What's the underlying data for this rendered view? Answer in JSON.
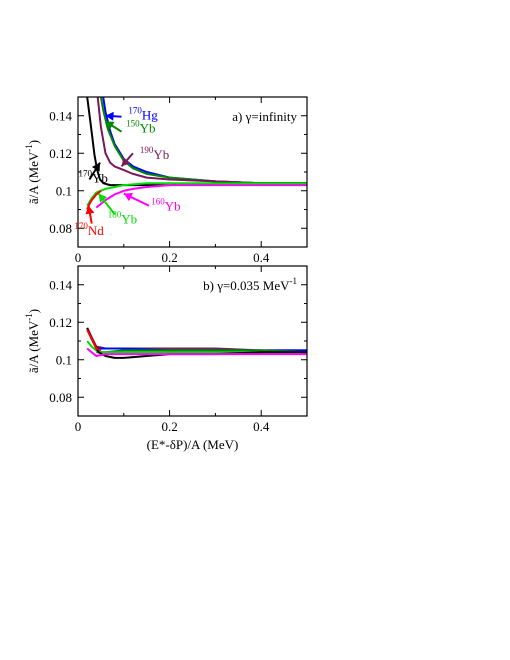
{
  "chart_data": [
    {
      "type": "line",
      "title": "a) γ=infinity",
      "title_parts": {
        "label": "a) ",
        "symbol": "γ",
        "rest": "=infinity",
        "sup": ""
      },
      "xlabel": "",
      "ylabel": "ã/A (MeV⁻¹)",
      "ylabel_parts": {
        "main": "ã/A (MeV",
        "sup": "-1",
        "tail": ")"
      },
      "xlim": [
        0,
        0.5
      ],
      "ylim": [
        0.07,
        0.15
      ],
      "xticks": [
        0,
        0.2,
        0.4
      ],
      "xtick_labels": [
        "0",
        "0.2",
        "0.4"
      ],
      "yticks": [
        0.08,
        0.1,
        0.12,
        0.14
      ],
      "ytick_labels": [
        "0.08",
        "0.1",
        "0.12",
        "0.14"
      ],
      "grid": false,
      "legend": "none",
      "series": [
        {
          "color": "#0000ff",
          "x": [
            0.055,
            0.06,
            0.07,
            0.08,
            0.1,
            0.12,
            0.15,
            0.2,
            0.25,
            0.3,
            0.4,
            0.5
          ],
          "y": [
            0.15,
            0.142,
            0.132,
            0.125,
            0.117,
            0.113,
            0.11,
            0.107,
            0.106,
            0.105,
            0.104,
            0.104
          ]
        },
        {
          "color": "#008800",
          "x": [
            0.05,
            0.055,
            0.065,
            0.08,
            0.1,
            0.12,
            0.15,
            0.2,
            0.25,
            0.3,
            0.4,
            0.5
          ],
          "y": [
            0.15,
            0.143,
            0.133,
            0.124,
            0.116,
            0.112,
            0.109,
            0.107,
            0.106,
            0.105,
            0.104,
            0.104
          ]
        },
        {
          "color": "#7a1a5a",
          "x": [
            0.043,
            0.05,
            0.06,
            0.07,
            0.08,
            0.1,
            0.12,
            0.15,
            0.2,
            0.3,
            0.4,
            0.5
          ],
          "y": [
            0.15,
            0.134,
            0.12,
            0.115,
            0.113,
            0.111,
            0.109,
            0.107,
            0.106,
            0.105,
            0.104,
            0.104
          ]
        },
        {
          "color": "#000000",
          "x": [
            0.02,
            0.028,
            0.036,
            0.042,
            0.048,
            0.056,
            0.07,
            0.09,
            0.12,
            0.2,
            0.3,
            0.4,
            0.5
          ],
          "y": [
            0.15,
            0.135,
            0.119,
            0.111,
            0.106,
            0.104,
            0.103,
            0.103,
            0.103,
            0.103,
            0.104,
            0.104,
            0.104
          ]
        },
        {
          "color": "#ff00ff",
          "x": [
            0.04,
            0.06,
            0.08,
            0.1,
            0.12,
            0.15,
            0.2,
            0.25,
            0.3,
            0.4,
            0.5
          ],
          "y": [
            0.091,
            0.095,
            0.098,
            0.1,
            0.101,
            0.102,
            0.103,
            0.103,
            0.103,
            0.103,
            0.103
          ]
        },
        {
          "color": "#00dd00",
          "x": [
            0.02,
            0.03,
            0.04,
            0.06,
            0.08,
            0.1,
            0.15,
            0.2,
            0.3,
            0.4,
            0.5
          ],
          "y": [
            0.092,
            0.096,
            0.099,
            0.101,
            0.102,
            0.103,
            0.104,
            0.104,
            0.104,
            0.104,
            0.104
          ]
        },
        {
          "color": "#ff0000",
          "x": [
            0.02,
            0.025,
            0.03,
            0.04,
            0.05
          ],
          "y": [
            0.09,
            0.093,
            0.095,
            0.098,
            0.1
          ]
        }
      ],
      "annotations": [
        {
          "sup": "170",
          "text": "Hg",
          "color": "#0000ff",
          "tx": 0.095,
          "ty": 0.1395,
          "ax": 0.06,
          "ay": 0.14,
          "label_x": 0.11,
          "label_y": 0.138
        },
        {
          "sup": "150",
          "text": "Yb",
          "color": "#008800",
          "tx": 0.095,
          "ty": 0.1315,
          "ax": 0.06,
          "ay": 0.137,
          "label_x": 0.105,
          "label_y": 0.131
        },
        {
          "sup": "190",
          "text": "Yb",
          "color": "#7a1a5a",
          "tx": 0.12,
          "ty": 0.12,
          "ax": 0.095,
          "ay": 0.113,
          "label_x": 0.135,
          "label_y": 0.117
        },
        {
          "sup": "170",
          "text": "Yb",
          "color": "#000000",
          "tx": 0.025,
          "ty": 0.106,
          "ax": 0.048,
          "ay": 0.115,
          "label_x": 0.001,
          "label_y": 0.1045
        },
        {
          "sup": "160",
          "text": "Yb",
          "color": "#ff00ff",
          "tx": 0.155,
          "ty": 0.092,
          "ax": 0.1,
          "ay": 0.0985,
          "label_x": 0.16,
          "label_y": 0.0895
        },
        {
          "sup": "180",
          "text": "Yb",
          "color": "#00dd00",
          "tx": 0.08,
          "ty": 0.0875,
          "ax": 0.045,
          "ay": 0.0985,
          "label_x": 0.065,
          "label_y": 0.0825
        },
        {
          "sup": "170",
          "text": "Nd",
          "color": "#ff0000",
          "tx": 0.03,
          "ty": 0.0825,
          "ax": 0.023,
          "ay": 0.092,
          "label_x": -0.008,
          "label_y": 0.0765
        }
      ]
    },
    {
      "type": "line",
      "title": "b) γ=0.035 MeV⁻¹",
      "title_parts": {
        "label": "b) ",
        "symbol": "γ",
        "rest": "=0.035 MeV",
        "sup": "-1"
      },
      "xlabel": "(E*-δP)/A (MeV)",
      "ylabel": "ã/A (MeV⁻¹)",
      "ylabel_parts": {
        "main": "ã/A (MeV",
        "sup": "-1",
        "tail": ")"
      },
      "xlim": [
        0,
        0.5
      ],
      "ylim": [
        0.07,
        0.15
      ],
      "xticks": [
        0,
        0.2,
        0.4
      ],
      "xtick_labels": [
        "0",
        "0.2",
        "0.4"
      ],
      "yticks": [
        0.08,
        0.1,
        0.12,
        0.14
      ],
      "ytick_labels": [
        "0.08",
        "0.1",
        "0.12",
        "0.14"
      ],
      "grid": false,
      "legend": "none",
      "series": [
        {
          "color": "#7a1a5a",
          "x": [
            0.02,
            0.03,
            0.04,
            0.06,
            0.1,
            0.2,
            0.3,
            0.4,
            0.5
          ],
          "y": [
            0.117,
            0.112,
            0.107,
            0.106,
            0.106,
            0.106,
            0.106,
            0.105,
            0.105
          ]
        },
        {
          "color": "#0000ff",
          "x": [
            0.04,
            0.06,
            0.1,
            0.2,
            0.3,
            0.4,
            0.5
          ],
          "y": [
            0.106,
            0.106,
            0.106,
            0.105,
            0.105,
            0.105,
            0.105
          ]
        },
        {
          "color": "#008800",
          "x": [
            0.04,
            0.06,
            0.1,
            0.2,
            0.3,
            0.4,
            0.5
          ],
          "y": [
            0.104,
            0.104,
            0.105,
            0.105,
            0.105,
            0.105,
            0.104
          ]
        },
        {
          "color": "#00dd00",
          "x": [
            0.02,
            0.03,
            0.045,
            0.06,
            0.1,
            0.2,
            0.3,
            0.4,
            0.5
          ],
          "y": [
            0.11,
            0.107,
            0.104,
            0.104,
            0.104,
            0.104,
            0.104,
            0.104,
            0.104
          ]
        },
        {
          "color": "#000000",
          "x": [
            0.02,
            0.03,
            0.045,
            0.06,
            0.08,
            0.1,
            0.15,
            0.2,
            0.3,
            0.4,
            0.5
          ],
          "y": [
            0.117,
            0.111,
            0.104,
            0.102,
            0.101,
            0.101,
            0.102,
            0.103,
            0.103,
            0.104,
            0.104
          ]
        },
        {
          "color": "#ff00ff",
          "x": [
            0.02,
            0.03,
            0.04,
            0.06,
            0.1,
            0.2,
            0.3,
            0.4,
            0.5
          ],
          "y": [
            0.106,
            0.104,
            0.102,
            0.103,
            0.103,
            0.103,
            0.103,
            0.103,
            0.103
          ]
        },
        {
          "color": "#ff0000",
          "x": [
            0.02,
            0.03,
            0.04,
            0.05
          ],
          "y": [
            0.116,
            0.111,
            0.106,
            0.105
          ]
        }
      ],
      "annotations": []
    }
  ]
}
